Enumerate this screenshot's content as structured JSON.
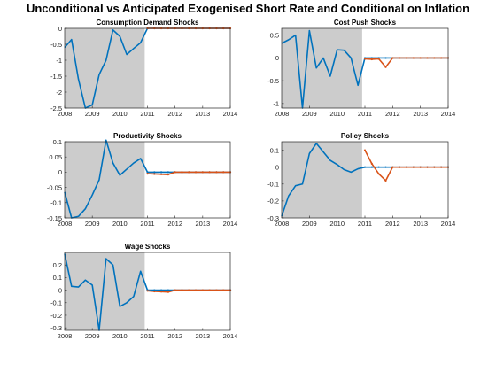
{
  "figure": {
    "title": "Unconditional vs Anticipated Exogenised Short Rate and Conditional on Inflation"
  },
  "colors": {
    "unconditional": "#0072BD",
    "anticipated": "#D95319",
    "shade": "#cccccc",
    "axis": "#262626"
  },
  "chart_data": [
    {
      "type": "line",
      "title": "Consumption Demand Shocks",
      "xlim": [
        2008,
        2014
      ],
      "ylim": [
        -2.5,
        0
      ],
      "xticks": [
        "2008",
        "2009",
        "2010",
        "2011",
        "2012",
        "2013",
        "2014"
      ],
      "yticks": [
        "-2.5",
        "-2",
        "-1.5",
        "-1",
        "-0.5",
        "0"
      ],
      "shade": [
        2008,
        2010.9
      ],
      "series": [
        {
          "role": "unconditional",
          "x": [
            2008,
            2008.25,
            2008.5,
            2008.75,
            2009,
            2009.25,
            2009.5,
            2009.75,
            2010,
            2010.25,
            2010.5,
            2010.75,
            2011,
            2011.25,
            2011.5,
            2011.75,
            2012,
            2012.25,
            2012.5,
            2012.75,
            2013,
            2013.25,
            2013.5,
            2013.75,
            2014
          ],
          "y": [
            -0.6,
            -0.35,
            -1.6,
            -2.5,
            -2.4,
            -1.45,
            -1.0,
            -0.05,
            -0.25,
            -0.82,
            -0.63,
            -0.45,
            0,
            0,
            0,
            0,
            0,
            0,
            0,
            0,
            0,
            0,
            0,
            0,
            0
          ]
        },
        {
          "role": "anticipated",
          "x": [
            2011,
            2011.25,
            2011.5,
            2011.75,
            2012,
            2012.25,
            2012.5,
            2012.75,
            2013,
            2013.25,
            2013.5,
            2013.75,
            2014
          ],
          "y": [
            0,
            0,
            0,
            0,
            0,
            0,
            0,
            0,
            0,
            0,
            0,
            0,
            0
          ]
        }
      ]
    },
    {
      "type": "line",
      "title": "Cost Push Shocks",
      "xlim": [
        2008,
        2014
      ],
      "ylim": [
        -1.1,
        0.65
      ],
      "xticks": [
        "2008",
        "2009",
        "2010",
        "2011",
        "2012",
        "2013",
        "2014"
      ],
      "yticks": [
        "-1",
        "-0.5",
        "0",
        "0.5"
      ],
      "shade": [
        2008,
        2010.9
      ],
      "series": [
        {
          "role": "unconditional",
          "x": [
            2008,
            2008.25,
            2008.5,
            2008.75,
            2009,
            2009.25,
            2009.5,
            2009.75,
            2010,
            2010.25,
            2010.5,
            2010.75,
            2011,
            2011.25,
            2011.5,
            2011.75,
            2012,
            2012.25,
            2012.5,
            2012.75,
            2013,
            2013.25,
            2013.5,
            2013.75,
            2014
          ],
          "y": [
            0.32,
            0.4,
            0.5,
            -1.1,
            0.6,
            -0.22,
            0.0,
            -0.4,
            0.18,
            0.17,
            0.0,
            -0.6,
            0.0,
            0.0,
            0.0,
            0.0,
            0,
            0,
            0,
            0,
            0,
            0,
            0,
            0,
            0
          ]
        },
        {
          "role": "anticipated",
          "x": [
            2011,
            2011.25,
            2011.5,
            2011.75,
            2012,
            2012.25,
            2012.5,
            2012.75,
            2013,
            2013.25,
            2013.5,
            2013.75,
            2014
          ],
          "y": [
            -0.02,
            -0.03,
            -0.02,
            -0.2,
            0.0,
            0,
            0,
            0,
            0,
            0,
            0,
            0,
            0
          ]
        }
      ]
    },
    {
      "type": "line",
      "title": "Productivity Shocks",
      "xlim": [
        2008,
        2014
      ],
      "ylim": [
        -0.15,
        0.1
      ],
      "xticks": [
        "2008",
        "2009",
        "2010",
        "2011",
        "2012",
        "2013",
        "2014"
      ],
      "yticks": [
        "-0.15",
        "-0.1",
        "-0.05",
        "0",
        "0.05",
        "0.1"
      ],
      "shade": [
        2008,
        2010.9
      ],
      "series": [
        {
          "role": "unconditional",
          "x": [
            2008,
            2008.25,
            2008.5,
            2008.75,
            2009,
            2009.25,
            2009.5,
            2009.75,
            2010,
            2010.25,
            2010.5,
            2010.75,
            2011,
            2011.25,
            2011.5,
            2011.75,
            2012,
            2012.25,
            2012.5,
            2012.75,
            2013,
            2013.25,
            2013.5,
            2013.75,
            2014
          ],
          "y": [
            -0.065,
            -0.15,
            -0.145,
            -0.12,
            -0.075,
            -0.025,
            0.105,
            0.03,
            -0.01,
            0.01,
            0.03,
            0.045,
            0.0,
            0.0,
            0.0,
            0.0,
            0,
            0,
            0,
            0,
            0,
            0,
            0,
            0,
            0
          ]
        },
        {
          "role": "anticipated",
          "x": [
            2011,
            2011.25,
            2011.5,
            2011.75,
            2012,
            2012.25,
            2012.5,
            2012.75,
            2013,
            2013.25,
            2013.5,
            2013.75,
            2014
          ],
          "y": [
            -0.005,
            -0.006,
            -0.007,
            -0.008,
            0.0,
            0,
            0,
            0,
            0,
            0,
            0,
            0,
            0
          ]
        }
      ]
    },
    {
      "type": "line",
      "title": "Policy Shocks",
      "xlim": [
        2008,
        2014
      ],
      "ylim": [
        -0.3,
        0.15
      ],
      "xticks": [
        "2008",
        "2009",
        "2010",
        "2011",
        "2012",
        "2013",
        "2014"
      ],
      "yticks": [
        "-0.3",
        "-0.2",
        "-0.1",
        "0",
        "0.1"
      ],
      "shade": [
        2008,
        2010.9
      ],
      "series": [
        {
          "role": "unconditional",
          "x": [
            2008,
            2008.25,
            2008.5,
            2008.75,
            2009,
            2009.25,
            2009.5,
            2009.75,
            2010,
            2010.25,
            2010.5,
            2010.75,
            2011,
            2011.25,
            2011.5,
            2011.75,
            2012,
            2012.25,
            2012.5,
            2012.75,
            2013,
            2013.25,
            2013.5,
            2013.75,
            2014
          ],
          "y": [
            -0.29,
            -0.17,
            -0.11,
            -0.1,
            0.08,
            0.14,
            0.09,
            0.04,
            0.015,
            -0.015,
            -0.03,
            -0.01,
            0.0,
            0.0,
            0.0,
            0.0,
            0,
            0,
            0,
            0,
            0,
            0,
            0,
            0,
            0
          ]
        },
        {
          "role": "anticipated",
          "x": [
            2011,
            2011.25,
            2011.5,
            2011.75,
            2012,
            2012.25,
            2012.5,
            2012.75,
            2013,
            2013.25,
            2013.5,
            2013.75,
            2014
          ],
          "y": [
            0.1,
            0.02,
            -0.04,
            -0.08,
            0.0,
            0,
            0,
            0,
            0,
            0,
            0,
            0,
            0
          ]
        }
      ]
    },
    {
      "type": "line",
      "title": "Wage Shocks",
      "xlim": [
        2008,
        2014
      ],
      "ylim": [
        -0.32,
        0.3
      ],
      "xticks": [
        "2008",
        "2009",
        "2010",
        "2011",
        "2012",
        "2013",
        "2014"
      ],
      "yticks": [
        "-0.3",
        "-0.2",
        "-0.1",
        "0",
        "0.1",
        "0.2"
      ],
      "shade": [
        2008,
        2010.9
      ],
      "series": [
        {
          "role": "unconditional",
          "x": [
            2008,
            2008.25,
            2008.5,
            2008.75,
            2009,
            2009.25,
            2009.5,
            2009.75,
            2010,
            2010.25,
            2010.5,
            2010.75,
            2011,
            2011.25,
            2011.5,
            2011.75,
            2012,
            2012.25,
            2012.5,
            2012.75,
            2013,
            2013.25,
            2013.5,
            2013.75,
            2014
          ],
          "y": [
            0.29,
            0.03,
            0.025,
            0.08,
            0.04,
            -0.32,
            0.25,
            0.2,
            -0.13,
            -0.1,
            -0.05,
            0.15,
            0.0,
            0.0,
            0.0,
            0.0,
            0,
            0,
            0,
            0,
            0,
            0,
            0,
            0,
            0
          ]
        },
        {
          "role": "anticipated",
          "x": [
            2011,
            2011.25,
            2011.5,
            2011.75,
            2012,
            2012.25,
            2012.5,
            2012.75,
            2013,
            2013.25,
            2013.5,
            2013.75,
            2014
          ],
          "y": [
            -0.005,
            -0.01,
            -0.012,
            -0.015,
            0.0,
            0,
            0,
            0,
            0,
            0,
            0,
            0,
            0
          ]
        }
      ]
    }
  ]
}
